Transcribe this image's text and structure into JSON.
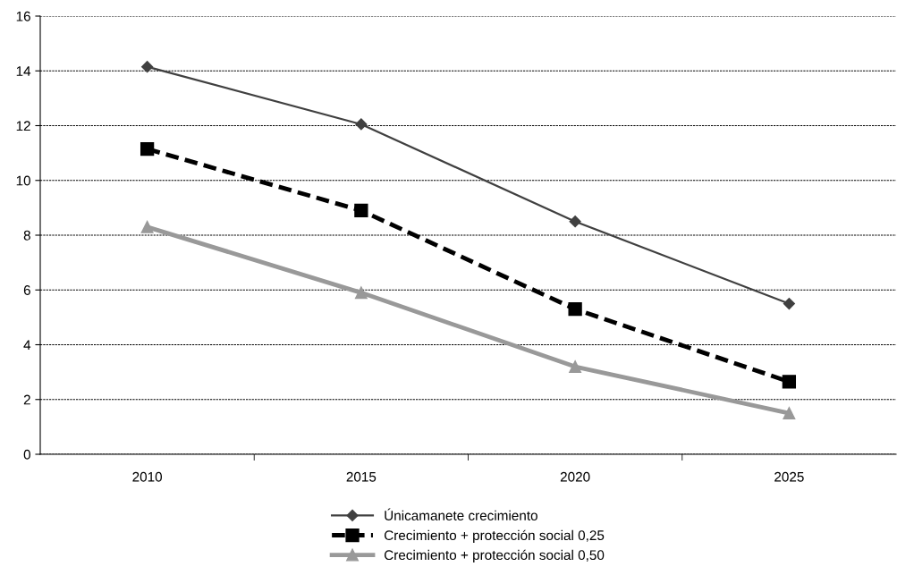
{
  "chart_data": {
    "type": "line",
    "categories": [
      "2010",
      "2015",
      "2020",
      "2025"
    ],
    "series": [
      {
        "name": "Únicamanete crecimiento",
        "color": "#404040",
        "values": [
          14.15,
          12.05,
          8.5,
          5.5
        ],
        "marker": "diamond",
        "line_style": "solid"
      },
      {
        "name": "Crecimiento + protección social 0,25",
        "color": "#000000",
        "values": [
          11.15,
          8.9,
          5.3,
          2.65
        ],
        "marker": "square",
        "line_style": "dashed"
      },
      {
        "name": "Crecimiento + protección social 0,50",
        "color": "#999999",
        "values": [
          8.3,
          5.9,
          3.2,
          1.5
        ],
        "marker": "triangle",
        "line_style": "solid"
      }
    ],
    "ylim": [
      0,
      16
    ],
    "yticks": [
      0,
      2,
      4,
      6,
      8,
      10,
      12,
      14,
      16
    ],
    "grid": "y",
    "legend": "bottom"
  }
}
